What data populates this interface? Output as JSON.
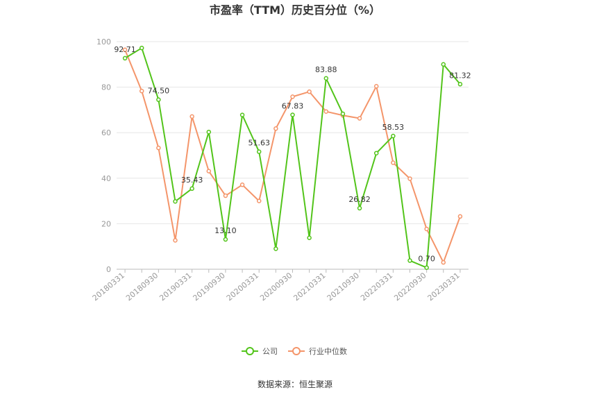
{
  "chart_data": {
    "type": "line",
    "title": "市盈率（TTM）历史百分位（%）",
    "xlabel": "",
    "ylabel": "",
    "ylim": [
      0,
      100
    ],
    "yticks": [
      0,
      20,
      40,
      60,
      80,
      100
    ],
    "x": [
      "20180331",
      "20180630",
      "20180930",
      "20181231",
      "20190331",
      "20190630",
      "20190930",
      "20191231",
      "20200331",
      "20200630",
      "20200930",
      "20201231",
      "20210331",
      "20210630",
      "20210930",
      "20211231",
      "20220331",
      "20220630",
      "20220930",
      "20221231",
      "20230331"
    ],
    "xtick_labels": [
      "20180331",
      "20180930",
      "20190331",
      "20190930",
      "20200331",
      "20200930",
      "20210331",
      "20210930",
      "20220331",
      "20220930",
      "20230331"
    ],
    "grid": true,
    "legend_position": "bottom-center",
    "series": [
      {
        "name": "公司",
        "color": "#52c41a",
        "values": [
          92.71,
          97.2,
          74.5,
          29.8,
          35.43,
          60.3,
          13.1,
          67.8,
          51.63,
          9.0,
          67.83,
          13.8,
          83.88,
          68.3,
          26.82,
          51.0,
          58.53,
          3.8,
          0.7,
          90.0,
          81.32
        ],
        "labeled_values": [
          "92.71",
          null,
          "74.50",
          null,
          "35.43",
          null,
          "13.10",
          null,
          "51.63",
          null,
          "67.83",
          null,
          "83.88",
          null,
          "26.82",
          null,
          "58.53",
          null,
          "0.70",
          null,
          "81.32"
        ]
      },
      {
        "name": "行业中位数",
        "color": "#f4956a",
        "values": [
          96.4,
          78.3,
          53.3,
          12.7,
          67.1,
          43.1,
          32.3,
          37.1,
          30.0,
          61.8,
          75.8,
          78.0,
          69.3,
          67.6,
          66.3,
          80.4,
          46.8,
          39.8,
          17.7,
          3.0,
          23.2
        ]
      }
    ]
  },
  "source_text": "数据来源：恒生聚源"
}
